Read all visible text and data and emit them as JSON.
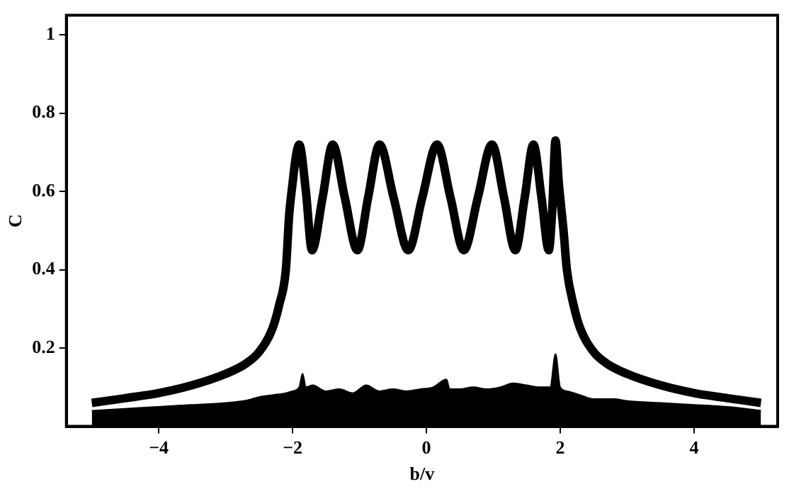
{
  "chart_data": {
    "type": "line",
    "xlabel": "b/v",
    "ylabel": "C",
    "xlim": [
      -5.38,
      5.25
    ],
    "ylim": [
      0,
      1.05
    ],
    "xticks": [
      -4,
      -2,
      0,
      2,
      4
    ],
    "yticks": [
      0.2,
      0.4,
      0.6,
      0.8,
      1
    ],
    "legend": false,
    "marker": "none",
    "line_style": "solid",
    "series": [
      {
        "type": "area",
        "color": "#000000",
        "x": [
          -5,
          -4.5,
          -4,
          -3.5,
          -3,
          -2.7,
          -2.5,
          -2.3,
          -2.1,
          -2,
          -1.9,
          -1.85,
          -1.8,
          -1.7,
          -1.5,
          -1.3,
          -1.1,
          -0.9,
          -0.7,
          -0.5,
          -0.3,
          -0.1,
          0.1,
          0.3,
          0.35,
          0.5,
          0.7,
          0.9,
          1.1,
          1.3,
          1.5,
          1.7,
          1.85,
          1.93,
          2.0,
          2.1,
          2.3,
          2.5,
          2.8,
          3,
          3.5,
          4,
          4.5,
          5
        ],
        "values": [
          0.04,
          0.045,
          0.05,
          0.055,
          0.06,
          0.066,
          0.075,
          0.08,
          0.085,
          0.09,
          0.1,
          0.135,
          0.1,
          0.105,
          0.09,
          0.095,
          0.085,
          0.105,
          0.09,
          0.095,
          0.09,
          0.095,
          0.1,
          0.12,
          0.095,
          0.095,
          0.1,
          0.095,
          0.1,
          0.11,
          0.105,
          0.1,
          0.1,
          0.185,
          0.1,
          0.09,
          0.08,
          0.07,
          0.07,
          0.065,
          0.06,
          0.055,
          0.05,
          0.04
        ]
      },
      {
        "type": "line",
        "color": "#000000",
        "x": [
          -5,
          -4.5,
          -4,
          -3.5,
          -3,
          -2.7,
          -2.5,
          -2.3,
          -2.2,
          -2.1,
          -2.05,
          -2,
          -1.95,
          -1.9,
          -1.8,
          -1.71,
          -1.55,
          -1.4,
          -1.22,
          -1.03,
          -0.87,
          -0.7,
          -0.49,
          -0.27,
          -0.06,
          0.16,
          0.36,
          0.56,
          0.77,
          0.98,
          1.16,
          1.33,
          1.47,
          1.6,
          1.72,
          1.83,
          1.88,
          1.93,
          1.98,
          2.05,
          2.1,
          2.2,
          2.3,
          2.5,
          2.7,
          3,
          3.5,
          4,
          4.5,
          5
        ],
        "values": [
          0.06,
          0.072,
          0.085,
          0.105,
          0.134,
          0.16,
          0.19,
          0.25,
          0.31,
          0.4,
          0.54,
          0.62,
          0.69,
          0.72,
          0.6,
          0.45,
          0.585,
          0.72,
          0.585,
          0.45,
          0.585,
          0.72,
          0.585,
          0.45,
          0.585,
          0.72,
          0.585,
          0.45,
          0.585,
          0.72,
          0.585,
          0.45,
          0.585,
          0.72,
          0.585,
          0.45,
          0.55,
          0.73,
          0.62,
          0.5,
          0.4,
          0.31,
          0.25,
          0.19,
          0.16,
          0.134,
          0.105,
          0.085,
          0.072,
          0.06
        ]
      }
    ]
  }
}
